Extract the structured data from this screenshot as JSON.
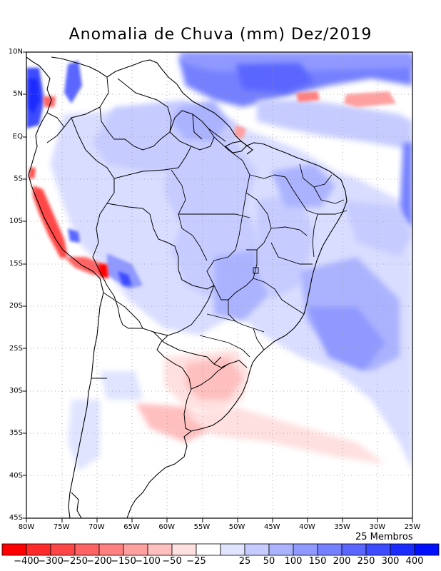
{
  "title": "Anomalia de Chuva (mm) Dez/2019",
  "members_label": "25 Membros",
  "map": {
    "lon_range": [
      -80,
      -25
    ],
    "lat_range": [
      -45,
      10
    ],
    "y_ticks": [
      {
        "lat": 10,
        "label": "10N"
      },
      {
        "lat": 5,
        "label": "5N"
      },
      {
        "lat": 0,
        "label": "EQ"
      },
      {
        "lat": -5,
        "label": "5S"
      },
      {
        "lat": -10,
        "label": "10S"
      },
      {
        "lat": -15,
        "label": "15S"
      },
      {
        "lat": -20,
        "label": "20S"
      },
      {
        "lat": -25,
        "label": "25S"
      },
      {
        "lat": -30,
        "label": "30S"
      },
      {
        "lat": -35,
        "label": "35S"
      },
      {
        "lat": -40,
        "label": "40S"
      },
      {
        "lat": -45,
        "label": "45S"
      }
    ],
    "x_ticks": [
      {
        "lon": -80,
        "label": "80W"
      },
      {
        "lon": -75,
        "label": "75W"
      },
      {
        "lon": -70,
        "label": "70W"
      },
      {
        "lon": -65,
        "label": "65W"
      },
      {
        "lon": -60,
        "label": "60W"
      },
      {
        "lon": -55,
        "label": "55W"
      },
      {
        "lon": -50,
        "label": "50W"
      },
      {
        "lon": -45,
        "label": "45W"
      },
      {
        "lon": -40,
        "label": "40W"
      },
      {
        "lon": -35,
        "label": "35W"
      },
      {
        "lon": -30,
        "label": "30W"
      },
      {
        "lon": -25,
        "label": "25W"
      }
    ]
  },
  "colorbar": {
    "colors": [
      "#ff0000",
      "#ff2a2a",
      "#ff4646",
      "#ff6363",
      "#ff8080",
      "#ffa0a0",
      "#ffbfbf",
      "#ffe0e0",
      "#ffffff",
      "#e0e4ff",
      "#c6ccff",
      "#abb3ff",
      "#9099ff",
      "#7580ff",
      "#5a66ff",
      "#3d4cff",
      "#1a2bff",
      "#0010ff"
    ],
    "labels": [
      "−400",
      "−300",
      "−250",
      "−200",
      "−150",
      "−100",
      "−50",
      "−25",
      "25",
      "50",
      "100",
      "150",
      "200",
      "250",
      "300",
      "400"
    ]
  }
}
